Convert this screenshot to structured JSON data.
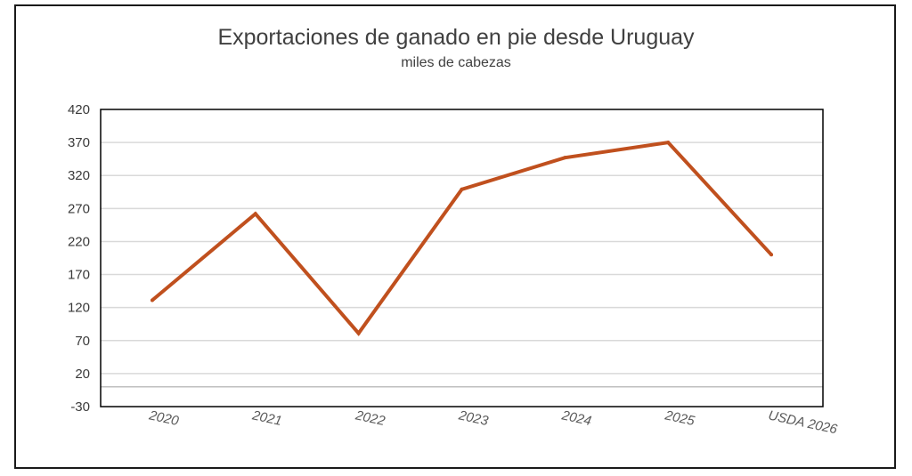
{
  "chart_data": {
    "type": "line",
    "title": "Exportaciones de ganado en pie desde Uruguay",
    "subtitle": "miles de cabezas",
    "categories": [
      "2020",
      "2021",
      "2022",
      "2023",
      "2024",
      "2025",
      "USDA 2026"
    ],
    "series": [
      {
        "values": [
          131,
          262,
          81,
          299,
          347,
          370,
          200
        ]
      }
    ],
    "yticks": [
      -30,
      20,
      70,
      120,
      170,
      220,
      270,
      320,
      370,
      420
    ],
    "ylim": [
      -30,
      420
    ],
    "grid": true,
    "legend": "none",
    "colors": {
      "line": "#c0501e",
      "grid": "#d9d9d9",
      "axis": "#000000"
    }
  }
}
